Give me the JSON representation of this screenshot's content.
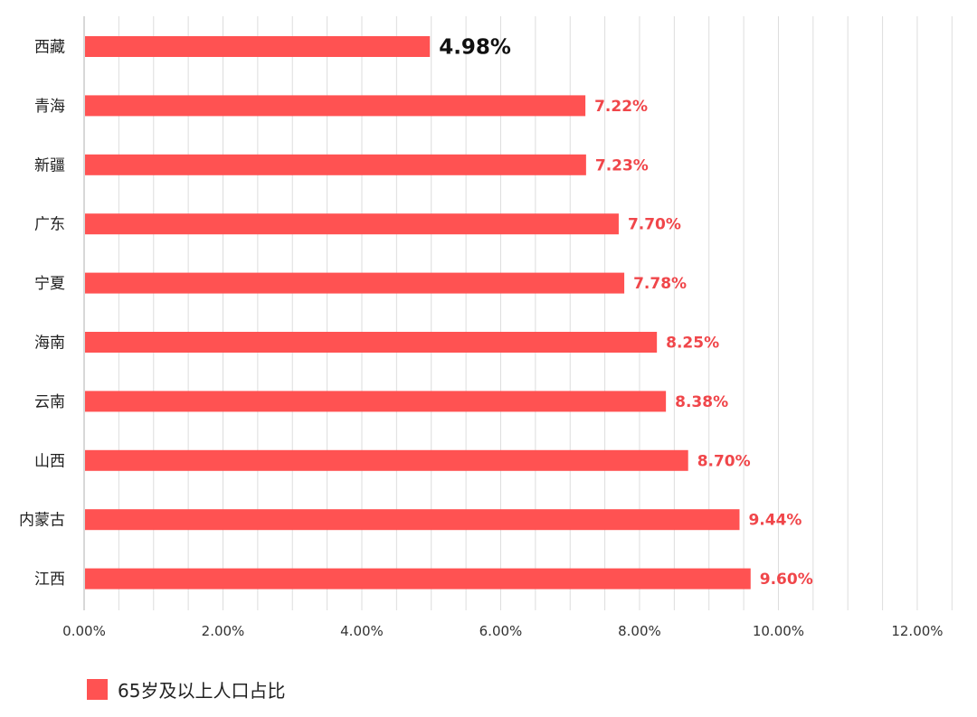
{
  "chart_data": {
    "type": "bar",
    "orientation": "horizontal",
    "categories": [
      "西藏",
      "青海",
      "新疆",
      "广东",
      "宁夏",
      "海南",
      "云南",
      "山西",
      "内蒙古",
      "江西"
    ],
    "series": [
      {
        "name": "65岁及以上人口占比",
        "values": [
          4.98,
          7.22,
          7.23,
          7.7,
          7.78,
          8.25,
          8.38,
          8.7,
          9.44,
          9.6
        ],
        "data_labels": [
          "4.98%",
          "7.22%",
          "7.23%",
          "7.70%",
          "7.78%",
          "8.25%",
          "8.38%",
          "8.70%",
          "9.44%",
          "9.60%"
        ]
      }
    ],
    "x_ticks": [
      0,
      2,
      4,
      6,
      8,
      10,
      12
    ],
    "x_tick_labels": [
      "0.00%",
      "2.00%",
      "4.00%",
      "6.00%",
      "8.00%",
      "10.00%",
      "12.00%"
    ],
    "xlim": [
      0,
      12.6
    ],
    "grid": true,
    "legend_position": "bottom-left",
    "highlight_index": 0,
    "colors": {
      "bar": "#ff5252",
      "value_label": "#f0464a",
      "highlight_label": "#111111",
      "grid": "#dddddd",
      "axis": "#cccccc"
    }
  }
}
